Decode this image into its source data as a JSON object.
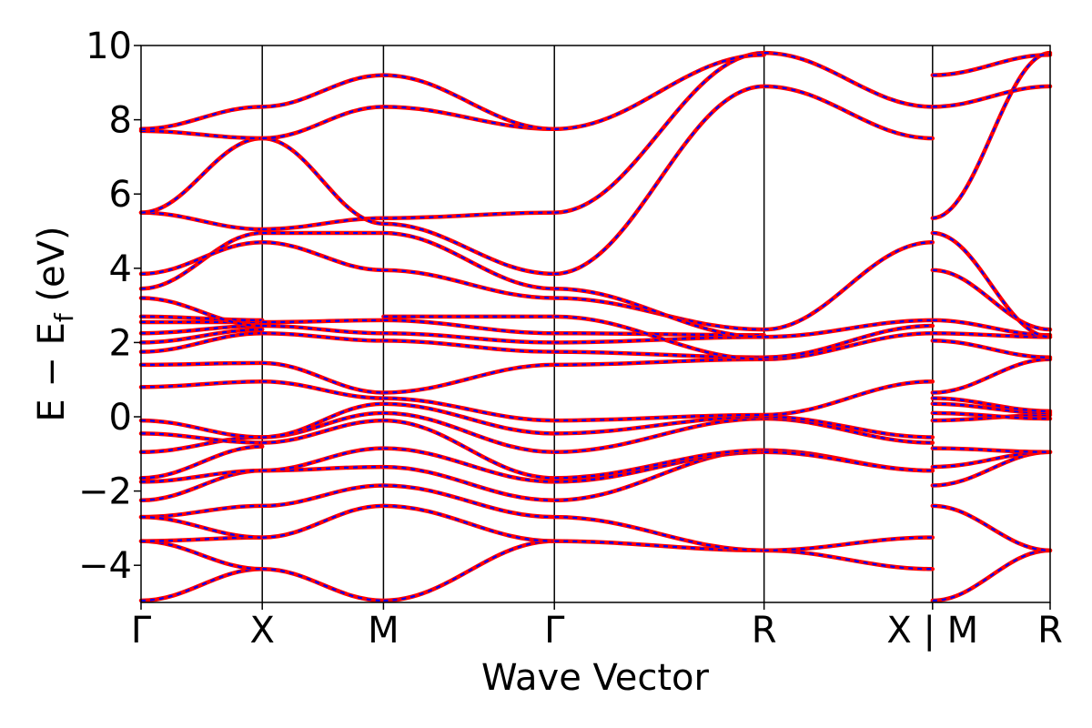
{
  "chart_data": {
    "type": "line",
    "title": "",
    "xlabel": "Wave Vector",
    "ylabel": "E − E_f (eV)",
    "ylabel_parts": {
      "main": "E − E",
      "sub": "f",
      "unit": " (eV)"
    },
    "ylim": [
      -5,
      10
    ],
    "yticks": [
      -4,
      -2,
      0,
      2,
      4,
      6,
      8,
      10
    ],
    "ytick_labels": [
      "−4",
      "−2",
      "0",
      "2",
      "4",
      "6",
      "8",
      "10"
    ],
    "xlim": [
      0,
      7.5
    ],
    "kpath_ticks": [
      {
        "label": "Γ",
        "x": 0
      },
      {
        "label": "X",
        "x": 1
      },
      {
        "label": "M",
        "x": 2
      },
      {
        "label": "Γ",
        "x": 3.41
      },
      {
        "label": "R",
        "x": 5.14
      },
      {
        "label": "X | M",
        "x": 6.53
      },
      {
        "label": "R",
        "x": 7.5
      }
    ],
    "grid": false,
    "legend": "none",
    "series_styles": [
      {
        "color": "#ff0000",
        "style": "solid"
      },
      {
        "color": "#0000ff",
        "style": "dashed"
      }
    ],
    "segments": [
      {
        "from": "Γ",
        "to": "X",
        "x0": 0,
        "x1": 1,
        "bands": [
          [
            -4.95,
            -4.1
          ],
          [
            -3.35,
            -4.1
          ],
          [
            -3.35,
            -3.25
          ],
          [
            -2.7,
            -2.4
          ],
          [
            -2.7,
            -3.25
          ],
          [
            -2.25,
            -1.45
          ],
          [
            -1.75,
            -1.45
          ],
          [
            -1.65,
            -0.8
          ],
          [
            -0.95,
            -0.55
          ],
          [
            -0.45,
            -0.7
          ],
          [
            -0.1,
            -0.55
          ],
          [
            0.8,
            0.95
          ],
          [
            1.4,
            1.45
          ],
          [
            1.75,
            2.25
          ],
          [
            2.0,
            2.35
          ],
          [
            2.25,
            2.45
          ],
          [
            2.55,
            2.55
          ],
          [
            2.7,
            2.6
          ],
          [
            3.2,
            2.45
          ],
          [
            3.45,
            4.95
          ],
          [
            3.85,
            4.7
          ],
          [
            5.5,
            5.05
          ],
          [
            5.5,
            7.5
          ],
          [
            7.7,
            7.5
          ],
          [
            7.75,
            8.35
          ]
        ]
      },
      {
        "from": "X",
        "to": "M",
        "x0": 1,
        "x1": 2,
        "bands": [
          [
            -4.1,
            -4.95
          ],
          [
            -3.25,
            -2.4
          ],
          [
            -2.4,
            -1.85
          ],
          [
            -1.45,
            -1.35
          ],
          [
            -1.45,
            -0.85
          ],
          [
            -0.7,
            -0.1
          ],
          [
            -0.55,
            0.1
          ],
          [
            -0.55,
            0.35
          ],
          [
            0.95,
            0.5
          ],
          [
            1.45,
            0.65
          ],
          [
            2.25,
            2.05
          ],
          [
            2.45,
            2.25
          ],
          [
            2.55,
            2.6
          ],
          [
            4.7,
            3.95
          ],
          [
            4.95,
            4.95
          ],
          [
            5.05,
            5.35
          ],
          [
            7.5,
            5.2
          ],
          [
            7.5,
            8.35
          ],
          [
            8.35,
            9.2
          ]
        ]
      },
      {
        "from": "M",
        "to": "Γ",
        "x0": 2,
        "x1": 3.41,
        "bands": [
          [
            -4.95,
            -3.35
          ],
          [
            -2.4,
            -3.35
          ],
          [
            -1.85,
            -2.7
          ],
          [
            -1.35,
            -2.25
          ],
          [
            -0.85,
            -1.75
          ],
          [
            -0.1,
            -1.65
          ],
          [
            0.1,
            -0.95
          ],
          [
            0.35,
            -0.45
          ],
          [
            0.5,
            -0.1
          ],
          [
            0.65,
            1.4
          ],
          [
            2.05,
            1.75
          ],
          [
            2.25,
            2.0
          ],
          [
            2.6,
            2.25
          ],
          [
            2.7,
            2.7
          ],
          [
            3.95,
            3.2
          ],
          [
            4.95,
            3.45
          ],
          [
            5.35,
            5.5
          ],
          [
            5.2,
            3.85
          ],
          [
            8.35,
            7.75
          ],
          [
            9.2,
            7.75
          ]
        ]
      },
      {
        "from": "Γ",
        "to": "R",
        "x0": 3.41,
        "x1": 5.14,
        "bands": [
          [
            -3.35,
            -3.6
          ],
          [
            -2.7,
            -3.6
          ],
          [
            -2.25,
            -0.9
          ],
          [
            -1.75,
            -0.95
          ],
          [
            -1.65,
            -0.9
          ],
          [
            -0.95,
            -0.05
          ],
          [
            -0.45,
            0.0
          ],
          [
            -0.1,
            0.05
          ],
          [
            1.4,
            1.55
          ],
          [
            1.75,
            1.6
          ],
          [
            2.0,
            2.15
          ],
          [
            2.25,
            2.2
          ],
          [
            2.7,
            1.55
          ],
          [
            3.2,
            2.35
          ],
          [
            3.45,
            2.15
          ],
          [
            3.85,
            8.9
          ],
          [
            5.5,
            9.8
          ],
          [
            7.75,
            9.75
          ]
        ]
      },
      {
        "from": "R",
        "to": "X",
        "x0": 5.14,
        "x1": 6.53,
        "bands": [
          [
            -3.6,
            -4.1
          ],
          [
            -3.6,
            -3.25
          ],
          [
            -0.9,
            -1.45
          ],
          [
            -0.95,
            -1.45
          ],
          [
            -0.05,
            -0.7
          ],
          [
            0.0,
            -0.55
          ],
          [
            0.05,
            0.95
          ],
          [
            1.55,
            2.25
          ],
          [
            1.6,
            2.45
          ],
          [
            2.15,
            2.6
          ],
          [
            2.35,
            4.7
          ],
          [
            8.9,
            7.5
          ],
          [
            9.8,
            8.35
          ]
        ]
      },
      {
        "from": "M",
        "to": "R",
        "x0": 6.53,
        "x1": 7.5,
        "bands": [
          [
            -4.95,
            -3.6
          ],
          [
            -2.4,
            -3.6
          ],
          [
            -1.85,
            -0.95
          ],
          [
            -1.35,
            -0.95
          ],
          [
            -0.85,
            -0.95
          ],
          [
            -0.1,
            0.05
          ],
          [
            0.1,
            -0.05
          ],
          [
            0.35,
            0.1
          ],
          [
            0.5,
            0.15
          ],
          [
            0.65,
            1.55
          ],
          [
            2.05,
            1.6
          ],
          [
            2.25,
            2.15
          ],
          [
            2.6,
            2.2
          ],
          [
            3.95,
            2.35
          ],
          [
            4.95,
            2.15
          ],
          [
            5.35,
            9.8
          ],
          [
            8.35,
            8.9
          ],
          [
            9.2,
            9.75
          ]
        ]
      }
    ]
  }
}
